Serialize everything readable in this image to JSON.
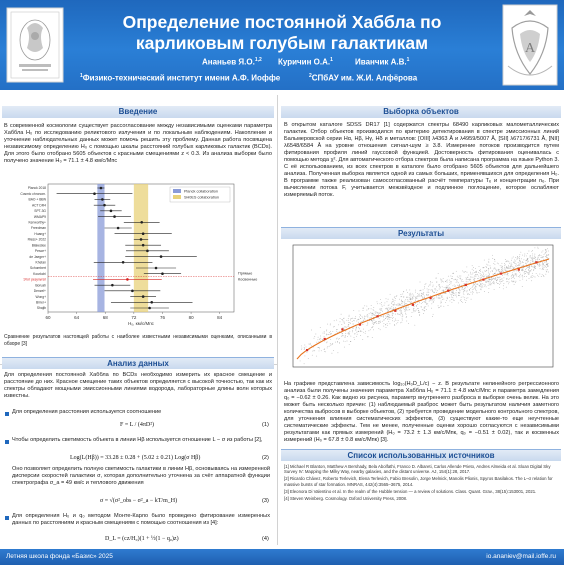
{
  "header": {
    "title_line1": "Определение постоянной Хаббла по",
    "title_line2": "карликовым голубым галактикам",
    "author1": "Ананьев Я.О.",
    "author1_sup": "1,2",
    "author2": "Куричин О.А.",
    "author2_sup": "1",
    "author3": "Иванчик А.В.",
    "author3_sup": "1",
    "affil1_sup": "1",
    "affil1": "Физико-технический институт имени А.Ф. Иоффе",
    "affil2_sup": "2",
    "affil2": "СПбАУ им. Ж.И. Алфёрова"
  },
  "intro": {
    "heading": "Введение",
    "text": "В современной космологии существует рассогласование между независимыми оценками параметра Хаббла H₀ по исследованию реликтового излучения и по локальным наблюдениям. Накопление и уточнение наблюдательных данных может помочь решить эту проблему. Данная работа посвящена независимому определению H₀ с помощью шкалы расстояний голубых карликовых галактик (BCDs). Для этого было отобрано 5605 объектов с красными смещениями z < 0.3. Из анализа выборки было получено значение H₀ = 71.1 ± 4.8 км/с/Мпс",
    "forest_caption": "Сравнение результатов настоящей работы с наиболее известными независимыми оценками, описанными в обзоре [3]",
    "forest_legend": [
      "Planck collaboration",
      "SH0ES collaboration"
    ],
    "forest_labels": [
      "Planck 2018",
      "Cosmic chronom.",
      "BAO + BBN",
      "ACT DR4",
      "SPT-3G",
      "WMAP9",
      "Kenworthy+",
      "Freedman",
      "Huang+",
      "Riess+ 2022",
      "Blakeslee",
      "Pesce+",
      "de Jaeger+",
      "Khetan",
      "Schombert",
      "Kourkchi",
      "Этот результат",
      "Boruah",
      "Denzel+",
      "Wong+",
      "Birrer+",
      "Shajib"
    ],
    "forest_axis_label": "H₀, км/с/Мпс",
    "forest_ticks": [
      "60",
      "64",
      "68",
      "72",
      "76",
      "80",
      "84"
    ],
    "forest_note": "Прямые\nКосвенные"
  },
  "chart_data": {
    "type": "scatter",
    "title": "",
    "xlabel": "H₀, км/с/Мпс",
    "xlim": [
      60,
      86
    ],
    "bands": [
      {
        "name": "Planck collaboration",
        "range": [
          66.9,
          67.9
        ],
        "color": "#8a9bd8"
      },
      {
        "name": "SH0ES collaboration",
        "range": [
          72.0,
          74.0
        ],
        "color": "#e8d27a"
      }
    ],
    "points": [
      {
        "label": "Planck 2018",
        "value": 67.4,
        "err": 0.5
      },
      {
        "label": "Cosmic chronom.",
        "value": 66.5,
        "err": 5.3
      },
      {
        "label": "BAO + BBN",
        "value": 67.6,
        "err": 1.1
      },
      {
        "label": "ACT DR4",
        "value": 67.9,
        "err": 1.5
      },
      {
        "label": "SPT-3G",
        "value": 68.8,
        "err": 1.5
      },
      {
        "label": "WMAP9",
        "value": 69.3,
        "err": 2.3
      },
      {
        "label": "Kenworthy+",
        "value": 73.1,
        "err": 2.5
      },
      {
        "label": "Freedman",
        "value": 69.8,
        "err": 1.9
      },
      {
        "label": "Huang+",
        "value": 73.3,
        "err": 4.0
      },
      {
        "label": "Riess+ 2022",
        "value": 73.0,
        "err": 1.0
      },
      {
        "label": "Blakeslee",
        "value": 73.3,
        "err": 2.5
      },
      {
        "label": "Pesce+",
        "value": 73.9,
        "err": 3.0
      },
      {
        "label": "de Jaeger+",
        "value": 75.8,
        "err": 5.0
      },
      {
        "label": "Khetan",
        "value": 70.5,
        "err": 4.1
      },
      {
        "label": "Schombert",
        "value": 75.1,
        "err": 2.8
      },
      {
        "label": "Kourkchi",
        "value": 76.0,
        "err": 2.6
      },
      {
        "label": "Этот результат",
        "value": 71.1,
        "err": 4.8,
        "highlight": true
      },
      {
        "label": "Boruah",
        "value": 69.0,
        "err": 2.5
      },
      {
        "label": "Denzel+",
        "value": 71.8,
        "err": 3.9
      },
      {
        "label": "Wong+",
        "value": 73.3,
        "err": 1.8
      },
      {
        "label": "Birrer+",
        "value": 74.5,
        "err": 5.7
      },
      {
        "label": "Shajib",
        "value": 74.2,
        "err": 2.7
      }
    ]
  },
  "analysis": {
    "heading": "Анализ данных",
    "p1": "Для определения постоянной Хаббла по BCDs необходимо измерить их красное смещение и расстояние до них. Красное смещение таких объектов определяется с высокой точностью, так как их спектры обладают мощными эмиссионными линиями водорода, лабораторные длины волн которых известны.",
    "b1": "Для определения расстояния используется соотношение",
    "eq1": "F = L / (4πD²)",
    "eq1_num": "(1)",
    "b2": "Чтобы определить светимость объекта в линии Hβ используется отношение L − σ из работы [2],",
    "eq2": "Log(L(Hβ)) = 33.28 ± 0.28 + (5.02 ± 0.21) Log(σ Hβ)",
    "eq2_num": "(2)",
    "p2": "Оно позволяет определить полную светимость галактики в линии Hβ, основываясь на измеренной дисперсии скоростей галактики σ, которая дополнительно уточнена за счёт аппаратной функции спектрографа σ_a = 49 км/с и теплового движения",
    "eq3": "σ = √(σ²_obs − σ²_a − kT/m_H)",
    "eq3_num": "(3)",
    "b3": "Для определения H₀ и q₀ методом Монте-Карло было проведено фитирование измеренных данных по расстояниям и красным смещениям с помощью соотношения из [4]:",
    "eq4": "D_L = (cz/H₀)(1 + ½(1 − q₀)z)",
    "eq4_num": "(4)"
  },
  "selection": {
    "heading": "Выборка объектов",
    "text": "В открытом каталоге SDSS DR17 [1] содержатся спектры 68490 карликовых малометаллических галактик. Отбор объектов производился по критерию детектирования в спектре эмиссионных линий Бальмеровской серии Hα, Hβ, Hγ, Hδ и металлов: [OIII] λ4363 Å и λ4959/5007 Å, [SII] λ6717/6731 Å, [NII] λ6548/6584 Å на уровне отношения сигнал-шум ≥ 3.8. Измерение потоков производится путем фитирования профиля линий гауссовой функцией. Достоверность фитирования оценивалась с помощью метода χ². Для автоматического отбора спектров была написана программа на языке Python 3. С её использованием, из всех спектров в каталоге было отобрано 5605 объектов для дальнейшего анализа. Полученная выборка является одной из самых больших, применявшихся для определения H₀. В программе также реализован самосогласованный расчёт температуры Tₑ и концентрации nₑ. При вычислении потока F, учитывается межзвёздное и подлинное поглощение, которое ослабляют измеряемый поток."
  },
  "results": {
    "heading": "Результаты",
    "text": "На графике представлена зависимость log₁₀(H₀D_L/c) − z. В результате нелинейного регрессионного анализа были получены значения параметра Хаббла H₀ = 71.1 ± 4.8 км/с/Мпс и параметра замедления q₀ = −0.62 ± 0.26. Как видно из рисунка, параметр внутреннего разброса в выборке очень велик. На это может быть несколько причин: (1) наблюдаемый разброс может быть результатом наличия заметного количества выбросов в выборке объектов, (2) требуется проведение модельного контрольного спектров, для уточнения влияния систематических эффектов, (3) существуют какие-то еще неучтенные систематические эффекты. Тем не менее, полученные оценки хорошо согласуются с независимыми результатами как прямых измерений (H₀ = 73.2 ± 1.3 км/с/Мпк, q₀ = −0.51 ± 0.02), так и косвенных измерений (H₀ = 67.8 ± 0.8 км/с/Мпк) [3]."
  },
  "refs": {
    "heading": "Список использованных источников",
    "items": [
      "[1]  Michael R Blanton, Matthew A Bershady, Bela Abolfathi, Franco D. Albareti, Carlos Allende Prieto, Andres Almeida et al. Sloan Digital Sky Survey IV: Mapping the Milky Way, nearby galaxies, and the distant universe. AJ, 154(1):28, 2017.",
      "[2]  Ricardo Chávez, Roberto Terlevich, Elena Terlevich, Fabio Bresolin, Jorge Melnick, Manolis Plionis, Spyros Basilakos. The L–σ relation for massive bursts of star formation. MNRAS, 442(4):3565–3675, 2014.",
      "[3]  Eleonora Di Valentino et al. In the realm of the Hubble tension — a review of solutions. Class. Quant. Grav., 38(15):153001, 2021.",
      "[4]  Steven Weinberg. Cosmology. Oxford University Press, 2008."
    ]
  },
  "footer": {
    "left": "Летняя школа фонда «Базис» 2025",
    "right": "io.ananiev@mail.ioffe.ru"
  }
}
